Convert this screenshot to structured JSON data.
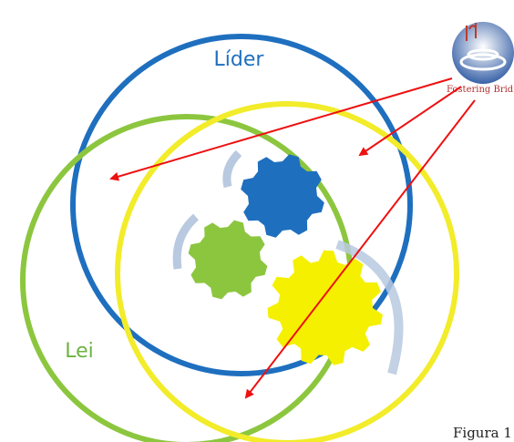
{
  "diagram": {
    "labels": {
      "leader": "Líder",
      "law": "Lei"
    },
    "logo": {
      "text": "Fostering Brid"
    },
    "caption": "Figura 1"
  }
}
